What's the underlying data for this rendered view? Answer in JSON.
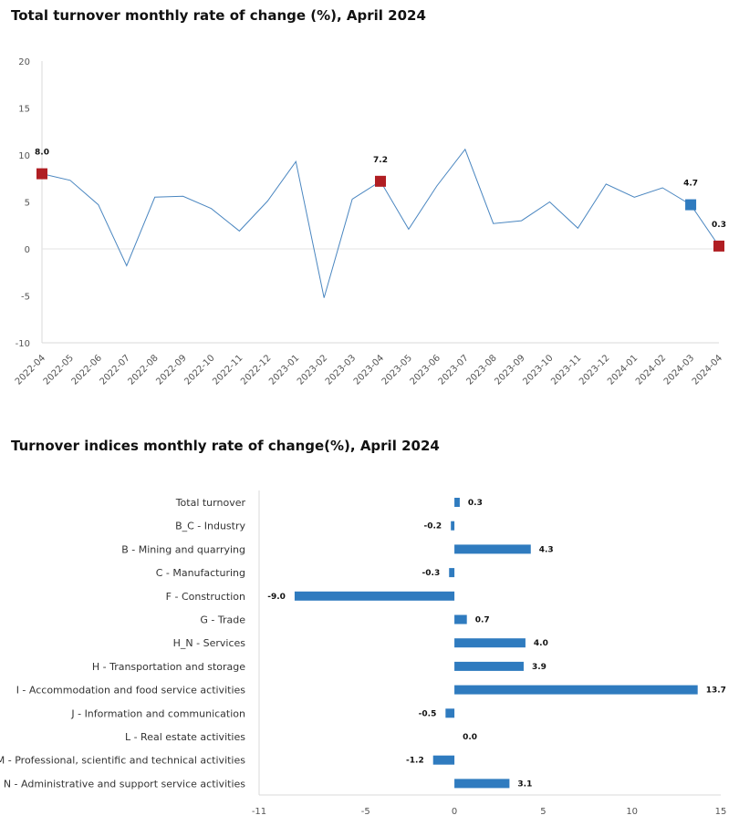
{
  "chart_data": [
    {
      "type": "line",
      "title": "Total turnover monthly rate of change (%), April 2024",
      "x": [
        "2022-04",
        "2022-05",
        "2022-06",
        "2022-07",
        "2022-08",
        "2022-09",
        "2022-10",
        "2022-11",
        "2022-12",
        "2023-01",
        "2023-02",
        "2023-03",
        "2023-04",
        "2023-05",
        "2023-06",
        "2023-07",
        "2023-08",
        "2023-09",
        "2023-10",
        "2023-11",
        "2023-12",
        "2024-01",
        "2024-02",
        "2024-03",
        "2024-04"
      ],
      "values": [
        8.0,
        7.3,
        4.7,
        -1.8,
        5.5,
        5.6,
        4.3,
        1.9,
        5.1,
        9.3,
        -5.2,
        5.3,
        7.2,
        2.1,
        6.7,
        10.6,
        2.7,
        3.0,
        5.0,
        2.2,
        6.9,
        5.5,
        6.5,
        4.7,
        0.3
      ],
      "highlighted_points": [
        {
          "x": "2022-04",
          "value": 8.0,
          "label": "8.0",
          "color": "#b01e23"
        },
        {
          "x": "2023-04",
          "value": 7.2,
          "label": "7.2",
          "color": "#b01e23"
        },
        {
          "x": "2024-03",
          "value": 4.7,
          "label": "4.7",
          "color": "#2f7bbf"
        },
        {
          "x": "2024-04",
          "value": 0.3,
          "label": "0.3",
          "color": "#b01e23"
        }
      ],
      "y_ticks": [
        "20",
        "15",
        "10",
        "5",
        "0",
        "-5",
        "-10"
      ],
      "ylim": [
        -10,
        20
      ],
      "line_color": "#4a86c0",
      "grid": false
    },
    {
      "type": "bar",
      "orientation": "horizontal",
      "title": "Turnover indices monthly rate of change(%), April 2024",
      "categories": [
        "Total turnover",
        "B_C - Industry",
        "B - Mining and quarrying",
        "C - Manufacturing",
        "F - Construction",
        "G - Trade",
        "H_N - Services",
        "H - Transportation and storage",
        "I - Accommodation and food service activities",
        "J - Information and communication",
        "L - Real estate activities",
        "M - Professional, scientific and technical activities",
        "N - Administrative and support service activities"
      ],
      "values": [
        0.3,
        -0.2,
        4.3,
        -0.3,
        -9.0,
        0.7,
        4.0,
        3.9,
        13.7,
        -0.5,
        0.0,
        -1.2,
        3.1
      ],
      "labels": [
        "0.3",
        "-0.2",
        "4.3",
        "-0.3",
        "-9.0",
        "0.7",
        "4.0",
        "3.9",
        "13.7",
        "-0.5",
        "0.0",
        "-1.2",
        "3.1"
      ],
      "x_ticks": [
        "-11",
        "-5",
        "0",
        "5",
        "10",
        "15"
      ],
      "xlim": [
        -11,
        15
      ],
      "bar_color": "#2f7bbf",
      "grid": false
    }
  ]
}
